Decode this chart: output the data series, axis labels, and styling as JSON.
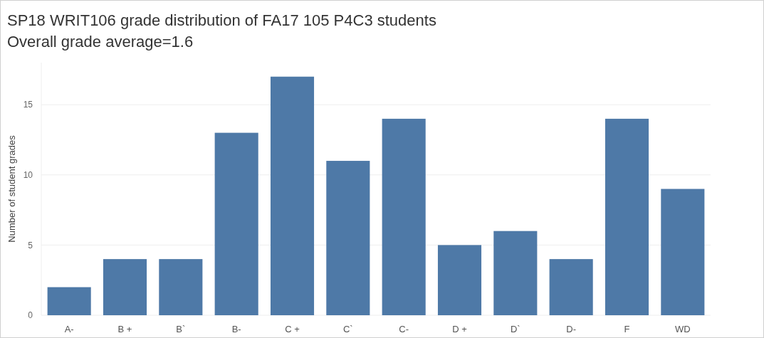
{
  "chart_data": {
    "type": "bar",
    "title": "SP18 WRIT106 grade distribution of FA17 105 P4C3 students",
    "subtitle": "Overall grade average=1.6",
    "ylabel": "Number of student grades",
    "categories": [
      "A-",
      "B +",
      "B`",
      "B-",
      "C +",
      "C`",
      "C-",
      "D +",
      "D`",
      "D-",
      "F",
      "WD"
    ],
    "values": [
      2,
      4,
      4,
      13,
      17,
      11,
      14,
      5,
      6,
      4,
      14,
      9
    ],
    "color": "#4e79a7",
    "ylim": [
      0,
      18
    ],
    "yticks": [
      0,
      5,
      10,
      15
    ],
    "grid": "y"
  }
}
